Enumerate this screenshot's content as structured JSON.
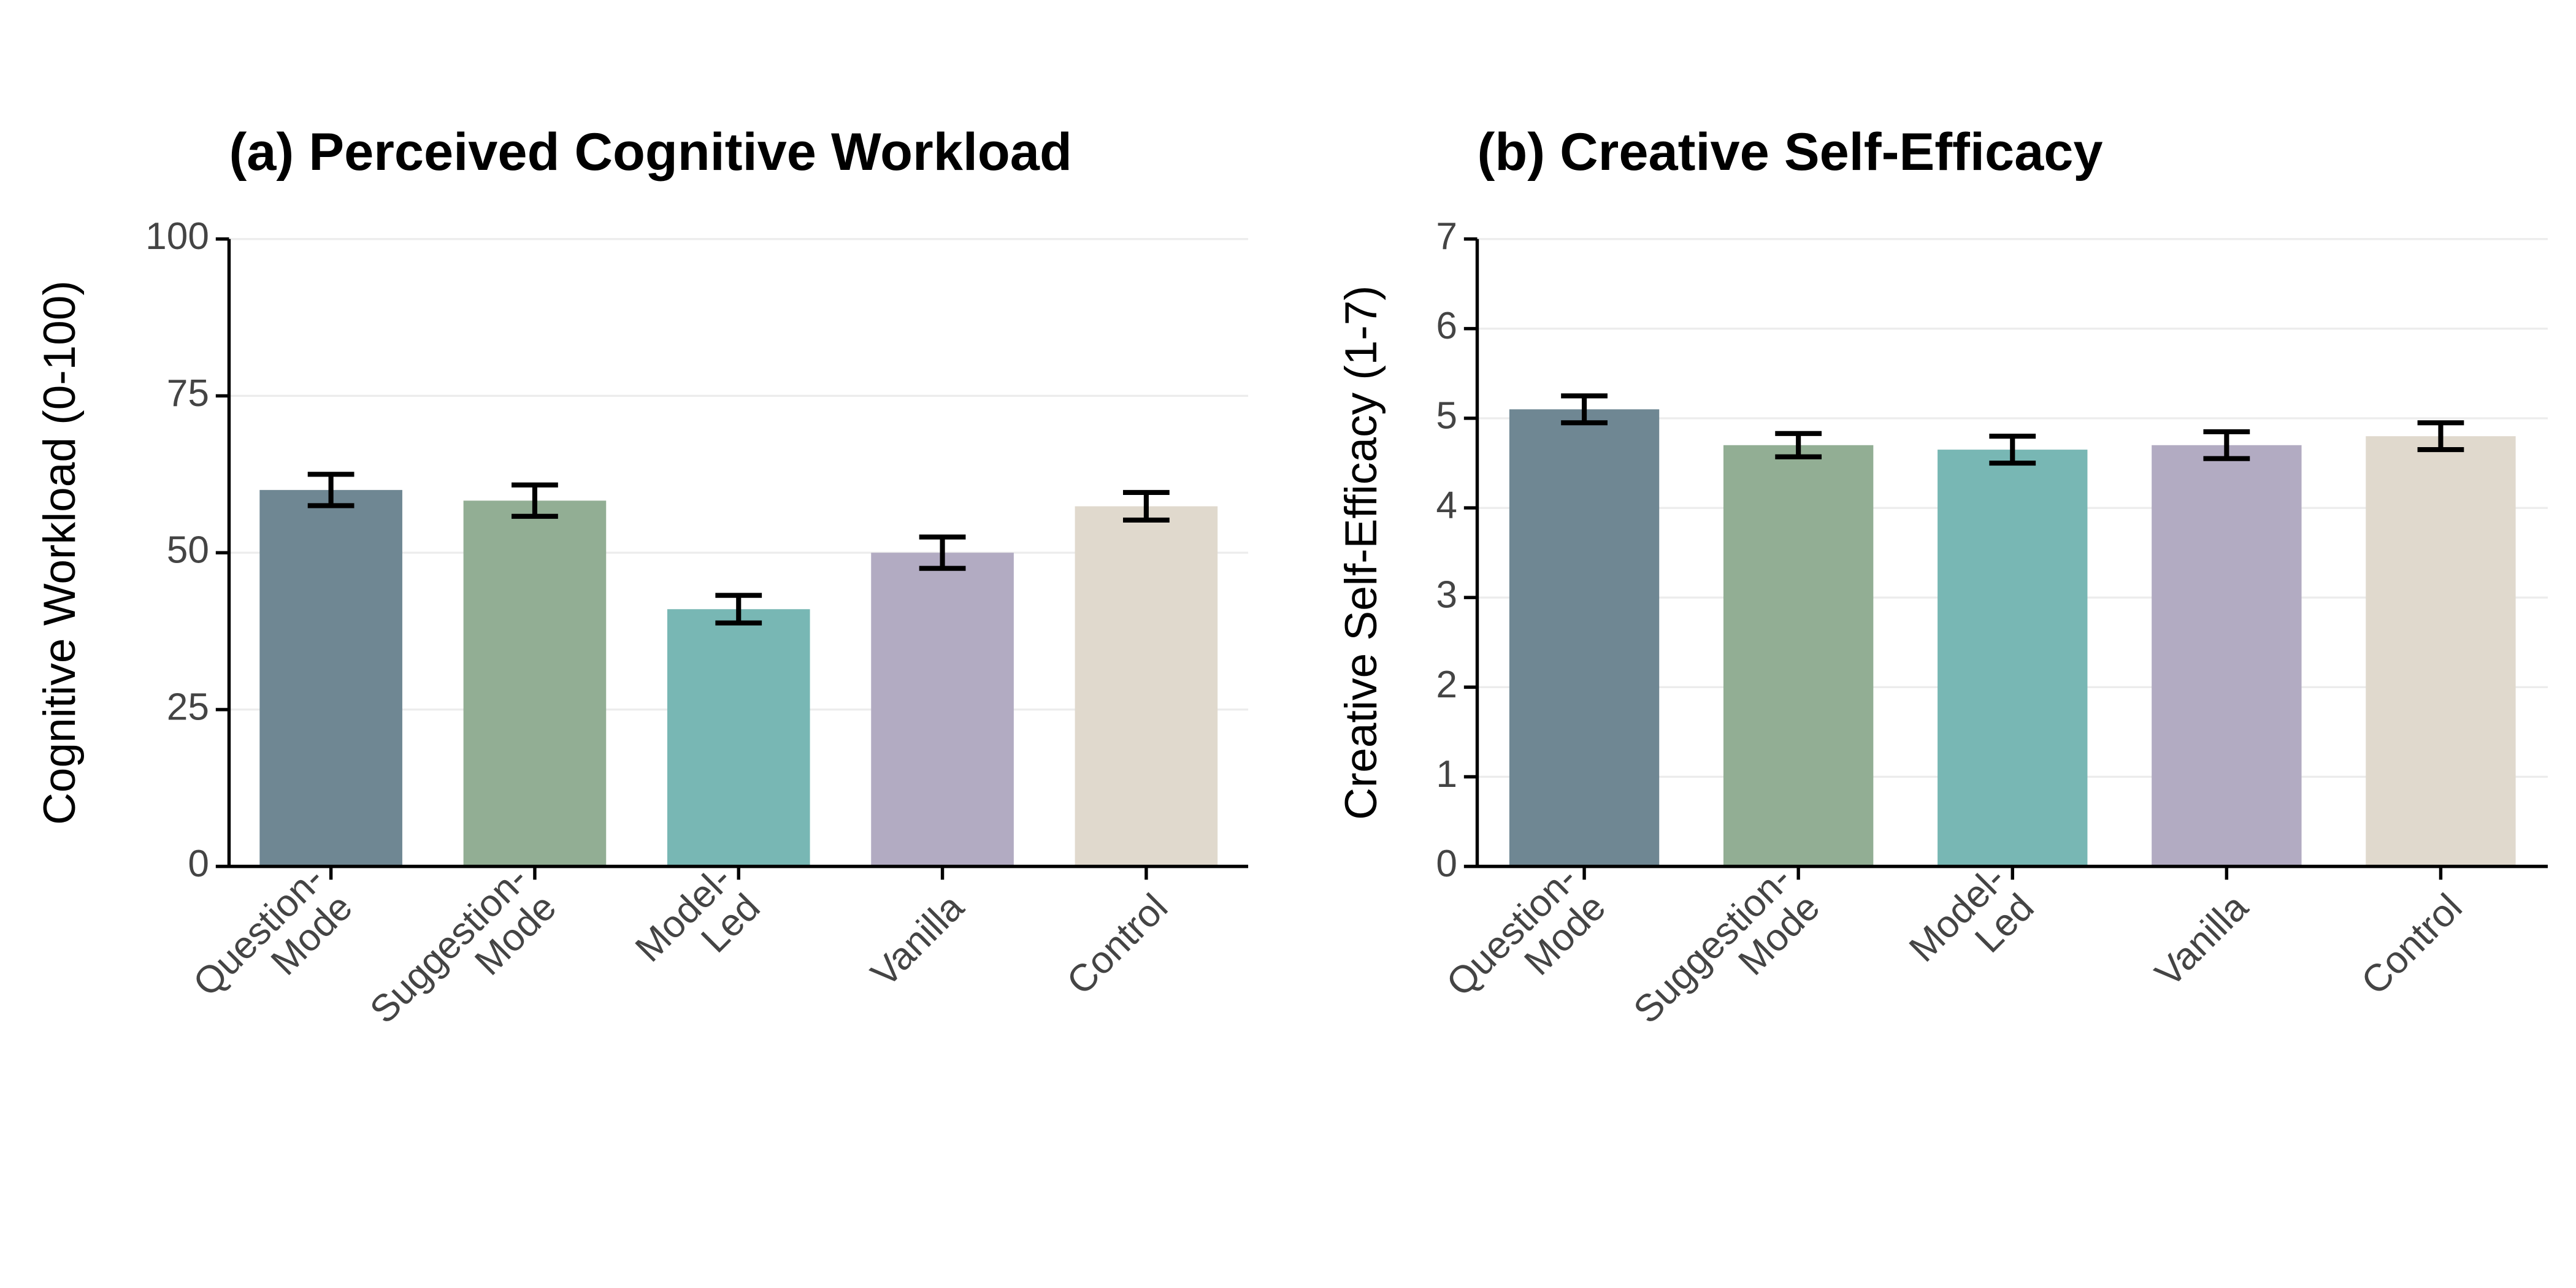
{
  "chart_data": [
    {
      "type": "bar",
      "title": "(a) Perceived Cognitive Workload",
      "ylabel": "Cognitive Workload (0-100)",
      "categories": [
        [
          "Question-",
          "Mode"
        ],
        [
          "Suggestion-",
          "Mode"
        ],
        [
          "Model-",
          "Led"
        ],
        [
          "Vanilla"
        ],
        [
          "Control"
        ]
      ],
      "values": [
        60,
        58.3,
        41,
        50,
        57.4
      ],
      "errors": [
        2.5,
        2.5,
        2.2,
        2.5,
        2.2
      ],
      "colors": [
        "#6f8793",
        "#92ae94",
        "#78b7b4",
        "#b2abc2",
        "#e0d9cd"
      ],
      "ylim": [
        0,
        100
      ],
      "yticks": [
        0,
        25,
        50,
        75,
        100
      ],
      "grid": true
    },
    {
      "type": "bar",
      "title": "(b) Creative Self-Efficacy",
      "ylabel": "Creative Self-Efficacy (1-7)",
      "categories": [
        [
          "Question-",
          "Mode"
        ],
        [
          "Suggestion-",
          "Mode"
        ],
        [
          "Model-",
          "Led"
        ],
        [
          "Vanilla"
        ],
        [
          "Control"
        ]
      ],
      "values": [
        5.1,
        4.7,
        4.65,
        4.7,
        4.8
      ],
      "errors": [
        0.15,
        0.13,
        0.15,
        0.15,
        0.15
      ],
      "colors": [
        "#6f8793",
        "#92ae94",
        "#78b7b4",
        "#b2abc2",
        "#e0d9cd"
      ],
      "ylim": [
        0,
        7
      ],
      "yticks": [
        0,
        1,
        2,
        3,
        4,
        5,
        6,
        7
      ],
      "grid": true
    }
  ]
}
